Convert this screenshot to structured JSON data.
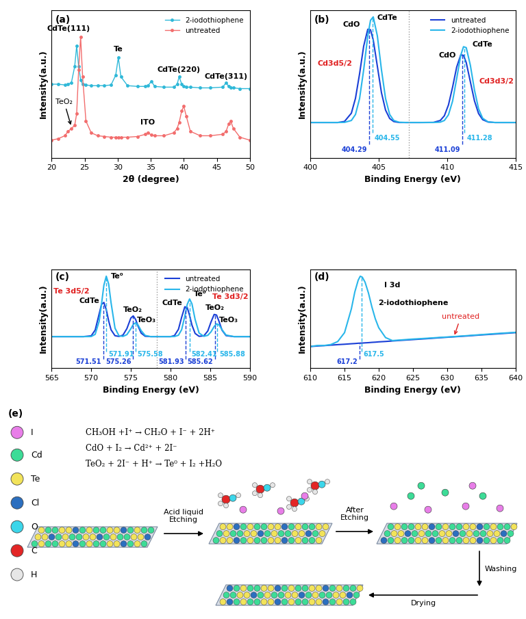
{
  "chart_data": [
    {
      "type": "line",
      "title": "(a)",
      "xlabel": "2θ (degree)",
      "ylabel": "Intensity(a.u.)",
      "xlim": [
        20,
        50
      ],
      "xticks": [
        20,
        25,
        30,
        35,
        40,
        45,
        50
      ],
      "ylim": [
        0,
        100
      ],
      "yticks": [],
      "tick_labels": "x",
      "legend": "upper right",
      "x": [
        20,
        21,
        22,
        22.5,
        23,
        23.5,
        23.8,
        24.1,
        24.4,
        24.7,
        25.2,
        26,
        27,
        28,
        29,
        29.7,
        30.1,
        30.5,
        31.5,
        33,
        34.2,
        34.6,
        35.1,
        35.6,
        37,
        38.5,
        39,
        39.3,
        39.7,
        40,
        40.4,
        41,
        42.5,
        44,
        45.9,
        46.4,
        46.8,
        47.1,
        47.5,
        48.5,
        50
      ],
      "series": [
        {
          "name": "2-iodothiophene",
          "color": "#2fb8d8",
          "marker": "circle",
          "values": [
            50,
            50,
            49.5,
            50,
            51,
            62,
            76,
            62,
            53,
            50,
            49.5,
            49,
            49,
            49,
            49.5,
            56,
            68,
            55,
            49,
            48.5,
            48.5,
            49,
            52,
            48.5,
            48,
            48,
            50,
            55,
            50,
            48.5,
            48,
            48,
            47.5,
            47.5,
            48,
            51,
            48.5,
            47.5,
            47.5,
            47,
            47
          ]
        },
        {
          "name": "untreated",
          "color": "#f26d6d",
          "marker": "circle",
          "values": [
            12,
            13,
            15,
            18,
            20,
            22,
            30,
            60,
            82,
            55,
            25,
            17,
            15,
            14.5,
            14,
            14,
            14,
            14,
            14,
            14.5,
            16,
            17,
            15.5,
            15,
            15,
            17,
            20,
            24,
            32,
            35,
            28,
            18,
            15,
            15,
            16,
            18,
            23,
            25,
            20,
            14,
            12
          ]
        }
      ],
      "annotations": [
        {
          "text": "CdTe(111)",
          "x": 22.6,
          "y": 87.5
        },
        {
          "text": "Te",
          "x": 30.1,
          "y": 73.5
        },
        {
          "text": "CdTe(220)",
          "x": 39.3,
          "y": 60
        },
        {
          "text": "CdTe(311)",
          "x": 46.4,
          "y": 55
        },
        {
          "text": "TeO₂",
          "x": 21.9,
          "y": 38,
          "arrow_to": [
            23.0,
            21
          ]
        },
        {
          "text": "ITO",
          "x": 34.5,
          "y": 24
        }
      ]
    },
    {
      "type": "line",
      "title": "(b)",
      "xlabel": "Binding Energy (eV)",
      "ylabel": "Intensity(a.u.)",
      "xlim": [
        400,
        415
      ],
      "xticks": [
        400,
        405,
        410,
        415
      ],
      "ylim": [
        -25,
        100
      ],
      "yticks": [],
      "tick_labels": "x",
      "legend": "upper right",
      "x": [
        400,
        401,
        402,
        402.5,
        403,
        403.3,
        403.6,
        403.9,
        404.2,
        404.4,
        404.6,
        404.9,
        405.2,
        405.5,
        405.8,
        406.1,
        406.5,
        407,
        408,
        409,
        409.5,
        409.8,
        410.1,
        410.4,
        410.7,
        411,
        411.2,
        411.4,
        411.7,
        412,
        412.3,
        412.6,
        413,
        413.5,
        414,
        415
      ],
      "series": [
        {
          "name": "untreated",
          "color": "#1a3fd6",
          "values": [
            5,
            5,
            5,
            5.9,
            12.9,
            25.5,
            46.3,
            69.8,
            84.1,
            83.7,
            75,
            52.7,
            30.3,
            15.5,
            8.4,
            5.8,
            5,
            5,
            5,
            5.1,
            6.7,
            10.7,
            19.9,
            34.9,
            52,
            62.4,
            62,
            55.8,
            39.6,
            23.4,
            12.6,
            7.4,
            5.4,
            5,
            5,
            5
          ]
        },
        {
          "name": "2-iodothiophene",
          "color": "#29b6ea",
          "values": [
            5,
            5,
            5,
            5.1,
            6.7,
            11.8,
            25.3,
            49.7,
            78.5,
            91.7,
            94.6,
            78.5,
            49.7,
            25.3,
            11.8,
            6.7,
            5.2,
            5,
            5,
            5,
            5.3,
            6.7,
            11.5,
            23.1,
            42.3,
            62.1,
            69.3,
            68.5,
            53.6,
            32.6,
            16.6,
            8.6,
            5.5,
            5,
            5,
            5
          ]
        }
      ],
      "reference_lines": [
        {
          "x": 404.29,
          "series": "untreated"
        },
        {
          "x": 404.55,
          "series": "2-iodothiophene"
        },
        {
          "x": 411.09,
          "series": "untreated"
        },
        {
          "x": 411.28,
          "series": "2-iodothiophene"
        }
      ],
      "divider": 407.2,
      "annotations": [
        {
          "text": "CdO",
          "x": 403.0,
          "y": 88
        },
        {
          "text": "CdTe",
          "x": 405.6,
          "y": 94
        },
        {
          "text": "CdO",
          "x": 410.0,
          "y": 62
        },
        {
          "text": "CdTe",
          "x": 412.6,
          "y": 71
        },
        {
          "text": "Cd3d5/2",
          "x": 401.8,
          "y": 55,
          "color": "#e02020"
        },
        {
          "text": "Cd3d3/2",
          "x": 413.6,
          "y": 40,
          "color": "#e02020"
        }
      ]
    },
    {
      "type": "line",
      "title": "(c)",
      "xlabel": "Binding Energy (eV)",
      "ylabel": "Intensity(a.u.)",
      "xlim": [
        565,
        590
      ],
      "xticks": [
        565,
        570,
        575,
        580,
        585,
        590
      ],
      "ylim": [
        0,
        100
      ],
      "yticks": [],
      "tick_labels": "x",
      "legend": "upper right",
      "x": [
        565,
        567,
        569,
        570,
        570.5,
        571,
        571.3,
        571.6,
        571.9,
        572.2,
        572.5,
        573,
        573.5,
        574,
        574.5,
        575,
        575.3,
        575.6,
        575.9,
        576.3,
        576.8,
        577.5,
        579,
        580,
        580.5,
        581,
        581.4,
        581.8,
        582.1,
        582.4,
        582.7,
        583.1,
        583.6,
        584.2,
        584.7,
        585.1,
        585.5,
        585.8,
        586.1,
        586.5,
        587,
        588,
        590
      ],
      "series": [
        {
          "name": "untreated",
          "color": "#1a3fd6",
          "values": [
            32,
            32,
            32,
            32.8,
            38.6,
            54.8,
            64.6,
            66.5,
            59.2,
            47.9,
            38.9,
            32.9,
            32.2,
            33.5,
            40.1,
            50.8,
            52.9,
            49.3,
            42.7,
            35.5,
            32.4,
            32,
            32,
            32,
            33.1,
            39.4,
            51.5,
            62.1,
            61.5,
            53.5,
            43.6,
            35.2,
            32.3,
            32.8,
            37.7,
            46.7,
            54.4,
            53.8,
            47.7,
            38.4,
            33,
            32,
            32
          ]
        },
        {
          "name": "2-iodothiophene",
          "color": "#29b6ea",
          "values": [
            32,
            32,
            32,
            32.1,
            34.3,
            47.5,
            65,
            84,
            93,
            85.1,
            66.3,
            40.5,
            32.9,
            32.2,
            34,
            40,
            44.3,
            46,
            43.8,
            38,
            33.2,
            32,
            32,
            32,
            32.1,
            33.4,
            39,
            52.6,
            64.4,
            70,
            65.1,
            49.3,
            35.6,
            32.3,
            33.3,
            36.8,
            42.2,
            44.9,
            44,
            38.9,
            33.6,
            32,
            32
          ]
        }
      ],
      "reference_lines": [
        {
          "x": 571.51,
          "series": "untreated"
        },
        {
          "x": 571.91,
          "series": "2-iodothiophene"
        },
        {
          "x": 575.26,
          "series": "untreated"
        },
        {
          "x": 575.58,
          "series": "2-iodothiophene"
        },
        {
          "x": 581.93,
          "series": "untreated"
        },
        {
          "x": 582.41,
          "series": "2-iodothiophene"
        },
        {
          "x": 585.62,
          "series": "untreated"
        },
        {
          "x": 585.88,
          "series": "2-iodothiophene"
        }
      ],
      "divider": 578.3,
      "annotations": [
        {
          "text": "Te 3d5/2",
          "x": 567.5,
          "y": 78,
          "color": "#e02020"
        },
        {
          "text": "Te 3d3/2",
          "x": 587.5,
          "y": 72,
          "color": "#e02020"
        },
        {
          "text": "Te⁰",
          "x": 573.3,
          "y": 93
        },
        {
          "text": "CdTe",
          "x": 569.8,
          "y": 68
        },
        {
          "text": "TeO₂",
          "x": 575.2,
          "y": 59
        },
        {
          "text": "TeO₃",
          "x": 577.0,
          "y": 49
        },
        {
          "text": "CdTe",
          "x": 580.2,
          "y": 66
        },
        {
          "text": "Te⁰",
          "x": 583.7,
          "y": 75
        },
        {
          "text": "TeO₂",
          "x": 585.6,
          "y": 61
        },
        {
          "text": "TeO₃",
          "x": 587.3,
          "y": 49
        }
      ]
    },
    {
      "type": "line",
      "title": "(d)",
      "xlabel": "Binding Energy (eV)",
      "ylabel": "Intensity(a.u.)",
      "xlim": [
        610,
        640
      ],
      "xticks": [
        610,
        615,
        620,
        625,
        630,
        635,
        640
      ],
      "ylim": [
        0,
        100
      ],
      "yticks": [],
      "tick_labels": "x",
      "x": [
        610,
        611,
        612,
        613,
        614,
        615,
        616,
        616.5,
        617,
        617.3,
        617.6,
        618,
        618.5,
        619,
        619.5,
        620,
        621,
        622,
        623,
        625,
        627,
        629,
        631,
        633,
        635,
        637,
        640
      ],
      "series": [
        {
          "name": "untreated",
          "color": "#1a3fd6",
          "values": [
            22,
            22.5,
            22.9,
            23.4,
            23.9,
            24.3,
            24.8,
            25,
            25.3,
            25.4,
            25.5,
            25.7,
            25.9,
            26.2,
            26.4,
            26.7,
            27.1,
            27.6,
            28.1,
            29,
            29.9,
            30.9,
            31.8,
            32.7,
            33.7,
            34.6,
            36
          ]
        },
        {
          "name": "2-iodothiophene",
          "color": "#29b6ea",
          "values": [
            22,
            23,
            23,
            24,
            27,
            36,
            60,
            77,
            89,
            93,
            92,
            87,
            76,
            62,
            50,
            41,
            31,
            28,
            28.5,
            29.5,
            30.3,
            31.2,
            32,
            33,
            34,
            35,
            36.3
          ]
        }
      ],
      "reference_lines": [
        {
          "x": 617.2,
          "series": "untreated"
        },
        {
          "x": 617.5,
          "series": "2-iodothiophene"
        }
      ],
      "annotations": [
        {
          "text": "I 3d",
          "x": 622,
          "y": 84
        },
        {
          "text": "2-iodothiophene",
          "x": 625,
          "y": 66
        },
        {
          "text": "untreated",
          "x": 632,
          "y": 52,
          "color": "#e02020",
          "arrow_to": [
            631,
            31.8
          ]
        }
      ]
    }
  ],
  "diagram": {
    "title": "(e)",
    "legend": [
      {
        "label": "I",
        "color": "#e87ee8"
      },
      {
        "label": "Cd",
        "color": "#3ddc97"
      },
      {
        "label": "Te",
        "color": "#f2e35a"
      },
      {
        "label": "Cl",
        "color": "#2c6fbf"
      },
      {
        "label": "O",
        "color": "#3cd6ea"
      },
      {
        "label": "C",
        "color": "#e32626"
      },
      {
        "label": "H",
        "color": "#e6e6e6"
      }
    ],
    "equations": [
      "CH₃OH +I⁺ → CH₂O + I⁻ + 2H⁺",
      "CdO + I₂ → Cd²⁺ + 2I⁻",
      "TeO₂ + 2I⁻ + H⁺ → Te⁰ + I₂ +H₂O"
    ],
    "steps": {
      "etching": "Acid liquid\nEtching",
      "after": "After\nEtching",
      "washing": "Washing",
      "drying": "Drying"
    }
  }
}
